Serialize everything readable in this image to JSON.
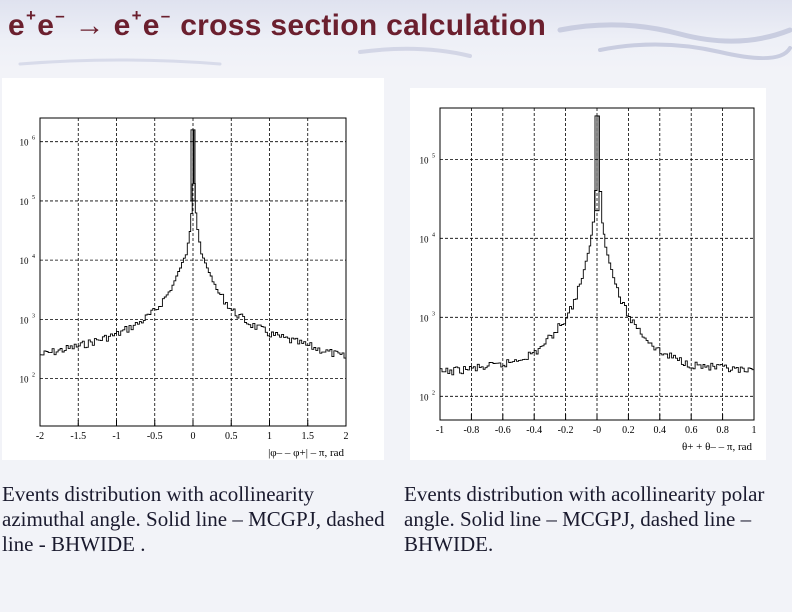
{
  "slide": {
    "title_parts": [
      "e",
      "+",
      "e",
      "–",
      " → e",
      "+",
      "e",
      "–",
      " cross section calculation"
    ],
    "caption_left": "Events distribution with acollinearity azimuthal angle. Solid line – MCGPJ, dashed line - BHWIDE .",
    "caption_right": "Events distribution with acollinearity polar angle. Solid line – MCGPJ, dashed line – BHWIDE."
  },
  "chart_data": [
    {
      "type": "line",
      "xlabel": "|φ– – φ+| – π, rad",
      "x_ticks": [
        "-2",
        "-1.5",
        "-1",
        "-0.5",
        "0",
        "0.5",
        "1",
        "1.5",
        "2"
      ],
      "x_tick_values": [
        -2,
        -1.5,
        -1,
        -0.5,
        0,
        0.5,
        1,
        1.5,
        2
      ],
      "y_ticks": [
        "10",
        "10",
        "10",
        "10",
        "10"
      ],
      "y_tick_exponents": [
        "6",
        "5",
        "4",
        "3",
        "2"
      ],
      "xlim": [
        -2,
        2
      ],
      "ylim_log10": [
        1.2,
        6.4
      ],
      "y_scale": "log",
      "grid": true,
      "series": [
        {
          "style": "solid",
          "x": [
            -2,
            -1.5,
            -1,
            -0.7,
            -0.5,
            -0.3,
            -0.2,
            -0.1,
            -0.05,
            -0.03,
            -0.01,
            0,
            0.01,
            0.03,
            0.05,
            0.1,
            0.2,
            0.3,
            0.5,
            0.7,
            1,
            1.5,
            2
          ],
          "y_log10": [
            2.4,
            2.55,
            2.75,
            2.95,
            3.15,
            3.5,
            3.8,
            4.1,
            4.5,
            4.8,
            5.3,
            6.2,
            5.3,
            4.8,
            4.5,
            4.1,
            3.8,
            3.5,
            3.15,
            2.95,
            2.75,
            2.55,
            2.35
          ]
        }
      ]
    },
    {
      "type": "line",
      "xlabel": "θ+ + θ– – π, rad",
      "x_ticks": [
        "-1",
        "-0.8",
        "-0.6",
        "-0.4",
        "-0.2",
        "-0",
        "0.2",
        "0.4",
        "0.6",
        "0.8",
        "1"
      ],
      "x_tick_values": [
        -1,
        -0.8,
        -0.6,
        -0.4,
        -0.2,
        0,
        0.2,
        0.4,
        0.6,
        0.8,
        1
      ],
      "y_ticks": [
        "10",
        "10",
        "10",
        "10"
      ],
      "y_tick_exponents": [
        "5",
        "4",
        "3",
        "2"
      ],
      "xlim": [
        -1,
        1
      ],
      "ylim_log10": [
        1.7,
        5.65
      ],
      "y_scale": "log",
      "grid": true,
      "series": [
        {
          "style": "solid",
          "x": [
            -1,
            -0.8,
            -0.6,
            -0.4,
            -0.3,
            -0.2,
            -0.15,
            -0.1,
            -0.05,
            -0.03,
            -0.015,
            0,
            0.015,
            0.03,
            0.05,
            0.1,
            0.15,
            0.2,
            0.3,
            0.4,
            0.6,
            0.8,
            1
          ],
          "y_log10": [
            2.3,
            2.35,
            2.4,
            2.55,
            2.75,
            3.0,
            3.2,
            3.5,
            3.9,
            4.2,
            4.6,
            5.55,
            4.6,
            4.2,
            3.9,
            3.5,
            3.2,
            3.0,
            2.75,
            2.55,
            2.4,
            2.35,
            2.3
          ]
        }
      ]
    }
  ]
}
